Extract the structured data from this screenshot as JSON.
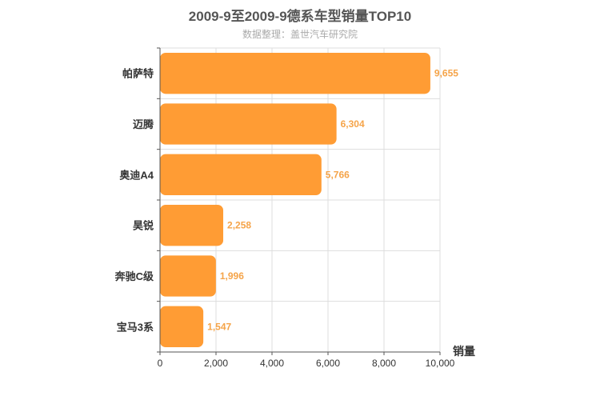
{
  "chart_data": {
    "type": "bar",
    "orientation": "horizontal",
    "title": "2009-9至2009-9德系车型销量TOP10",
    "subtitle": "数据整理：盖世汽车研究院",
    "categories": [
      "帕萨特",
      "迈腾",
      "奥迪A4",
      "昊锐",
      "奔驰C级",
      "宝马3系"
    ],
    "values": [
      9655,
      6304,
      5766,
      2258,
      1996,
      1547
    ],
    "value_labels": [
      "9,655",
      "6,304",
      "5,766",
      "2,258",
      "1,996",
      "1,547"
    ],
    "xlabel": "销量",
    "ylabel": "",
    "xlim": [
      0,
      10000
    ],
    "xticks": [
      0,
      2000,
      4000,
      6000,
      8000,
      10000
    ],
    "xtick_labels": [
      "0",
      "2,000",
      "4,000",
      "6,000",
      "8,000",
      "10,000"
    ],
    "grid": true,
    "colors": {
      "bar": "#ff9c34",
      "value_label": "#f5a449",
      "grid": "#dddddd",
      "axis": "#555555"
    }
  }
}
